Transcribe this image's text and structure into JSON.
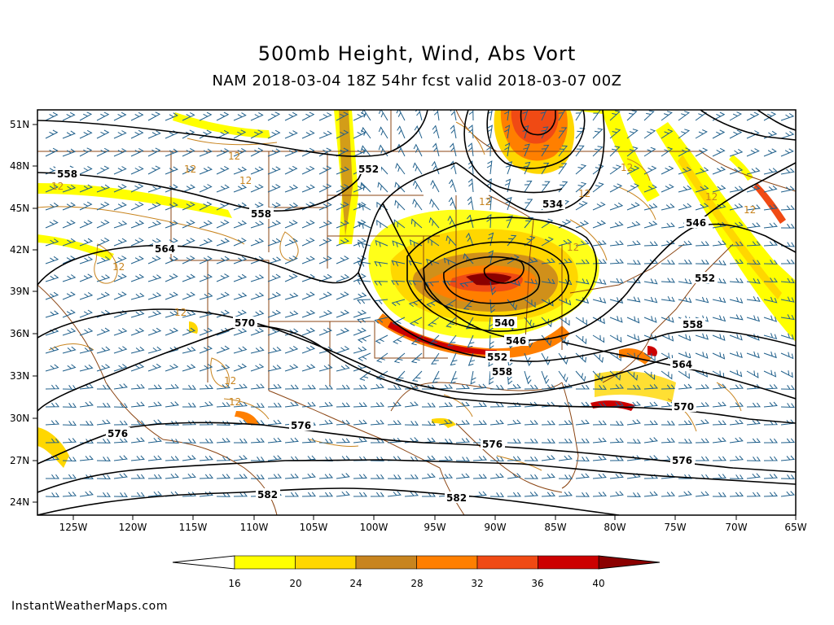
{
  "header": {
    "title": "500mb Height, Wind, Abs Vort",
    "subtitle": "NAM 2018-03-04 18Z 54hr fcst valid 2018-03-07 00Z"
  },
  "map": {
    "lat_labels": [
      "51N",
      "48N",
      "45N",
      "42N",
      "39N",
      "36N",
      "33N",
      "30N",
      "27N",
      "24N"
    ],
    "lon_labels": [
      "125W",
      "120W",
      "115W",
      "110W",
      "105W",
      "100W",
      "95W",
      "90W",
      "85W",
      "80W",
      "75W",
      "70W",
      "65W"
    ],
    "height_contours": [
      "558",
      "552",
      "558",
      "564",
      "570",
      "534",
      "540",
      "546",
      "552",
      "558",
      "546",
      "552",
      "558",
      "564",
      "570",
      "576",
      "576",
      "576",
      "576",
      "582",
      "582"
    ],
    "vort_labels": [
      "12",
      "12",
      "12",
      "12",
      "12",
      "12",
      "12",
      "12",
      "12",
      "12",
      "12",
      "12",
      "12",
      "12"
    ],
    "colors": {
      "contour": "#000000",
      "wind_barb": "#1f5f8b",
      "geo_border": "#8b4513",
      "vort_outline": "#c8841e"
    }
  },
  "colorbar": {
    "labels": [
      "16",
      "20",
      "24",
      "28",
      "32",
      "36",
      "40"
    ],
    "colors": [
      "#ffff00",
      "#ffd700",
      "#c8841e",
      "#ff7f00",
      "#f04a14",
      "#cc0000",
      "#8b0000"
    ]
  },
  "footer": {
    "credit": "InstantWeatherMaps.com"
  }
}
